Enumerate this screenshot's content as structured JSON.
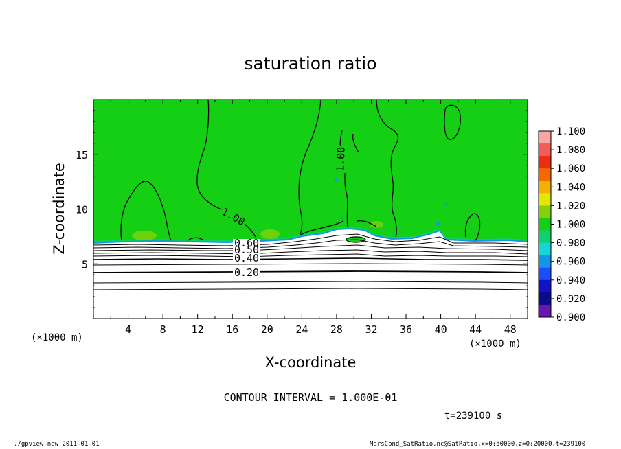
{
  "chart_data": {
    "type": "heatmap",
    "title": "saturation ratio",
    "xlabel": "X-coordinate",
    "ylabel": "Z-coordinate",
    "x_unit": "(×1000 m)",
    "z_unit": "(×1000 m)",
    "xlim": [
      0,
      50
    ],
    "ylim": [
      0,
      20
    ],
    "x_ticks": [
      4,
      8,
      12,
      16,
      20,
      24,
      28,
      32,
      36,
      40,
      44,
      48
    ],
    "y_ticks": [
      5,
      10,
      15
    ],
    "colorbar": {
      "levels": [
        "1.100",
        "1.080",
        "1.060",
        "1.040",
        "1.020",
        "1.000",
        "0.980",
        "0.960",
        "0.940",
        "0.920",
        "0.900"
      ],
      "colors": [
        "#f9a6a6",
        "#f35a5a",
        "#ef2b12",
        "#f56a00",
        "#f2b000",
        "#e6e600",
        "#84d10a",
        "#14cf14",
        "#0fd070",
        "#14d6d6",
        "#1296ea",
        "#1d4cff",
        "#1212c8",
        "#0a0a8c",
        "#6a14b4"
      ]
    },
    "contour_labels": [
      "1.00",
      "1.00",
      "0.60",
      "0.50",
      "0.40",
      "0.20"
    ],
    "contour_interval_text": "CONTOUR INTERVAL = 1.000E-01",
    "time_text": "t=239100 s",
    "grid": false
  },
  "footer": {
    "left": "./gpview-new  2011-01-01",
    "right": "MarsCond_SatRatio.nc@SatRatio,x=0:50000,z=0:20000,t=239100"
  }
}
